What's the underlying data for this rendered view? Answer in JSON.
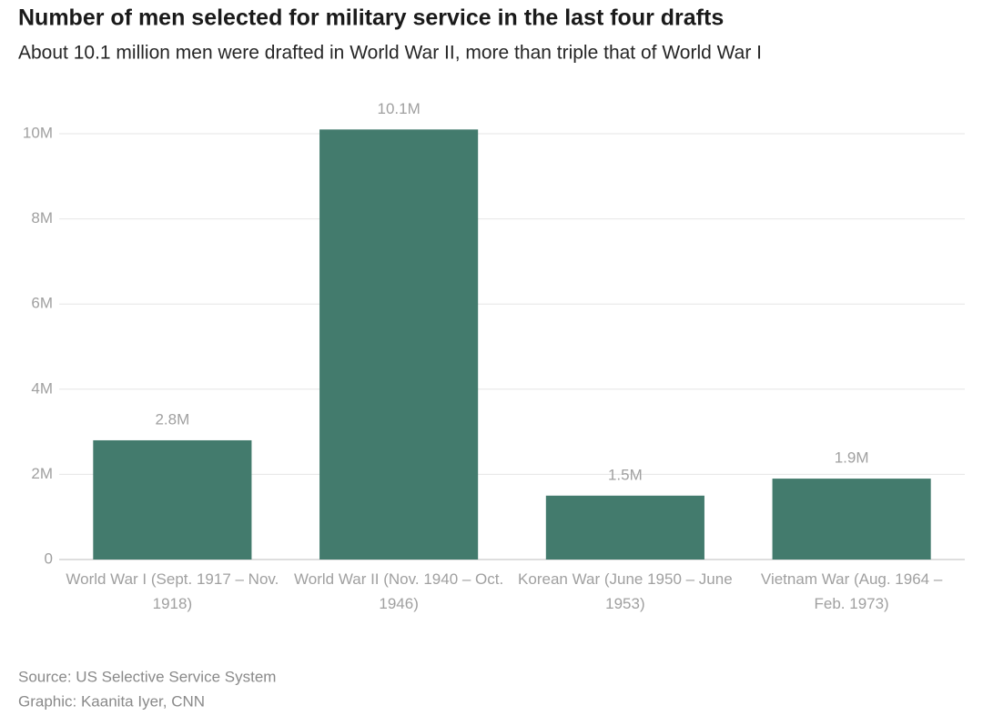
{
  "chart_data": {
    "type": "bar",
    "title": "Number of men selected for military service in the last four drafts",
    "subtitle": "About 10.1 million men were drafted in World War II, more than triple that of World War I",
    "categories": [
      "World War I (Sept. 1917 – Nov. 1918)",
      "World War II (Nov. 1940 – Oct. 1946)",
      "Korean War (June 1950 – June 1953)",
      "Vietnam War (Aug. 1964 – Feb. 1973)"
    ],
    "values": [
      2.8,
      10.1,
      1.5,
      1.9
    ],
    "value_labels": [
      "2.8M",
      "10.1M",
      "1.5M",
      "1.9M"
    ],
    "color": "#437b6d",
    "ylim": [
      0,
      10.5
    ],
    "yticks": [
      0,
      {
        "value": 2,
        "label": "2M"
      },
      {
        "value": 4,
        "label": "4M"
      },
      {
        "value": 6,
        "label": "6M"
      },
      {
        "value": 8,
        "label": "8M"
      },
      {
        "value": 10,
        "label": "10M"
      }
    ],
    "grid": true,
    "source": "Source: US Selective Service System",
    "credit": "Graphic: Kaanita Iyer, CNN"
  }
}
